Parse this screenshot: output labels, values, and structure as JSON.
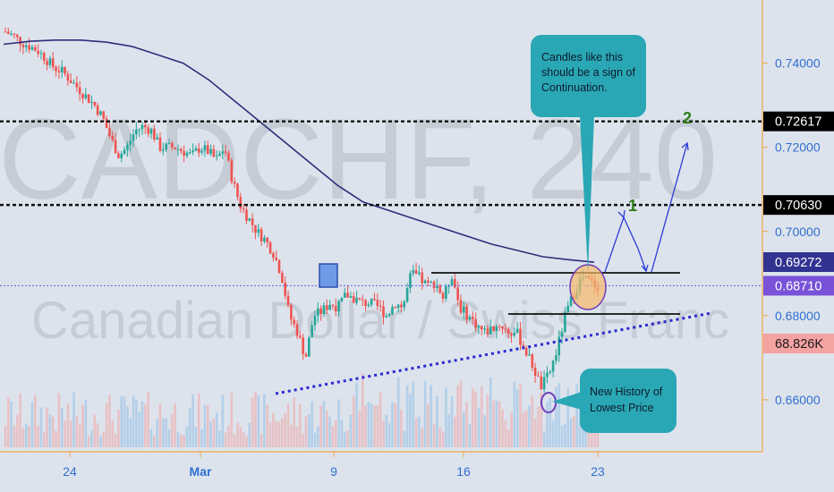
{
  "chart_data": {
    "type": "candlestick",
    "symbol_watermark": "CADCHF, 240",
    "name_watermark": "Canadian Dollar / Swiss Franc",
    "x_labels": [
      "24",
      "Mar",
      "9",
      "16",
      "23"
    ],
    "y_ticks": [
      "0.74000",
      "0.72000",
      "0.70000",
      "0.68000",
      "0.66000"
    ],
    "y_tick_values": [
      0.74,
      0.72,
      0.7,
      0.68,
      0.66
    ],
    "ylim": [
      0.6487,
      0.7529
    ],
    "levels": [
      {
        "label": "0.72617",
        "value": 0.72617,
        "style": "black-dotted"
      },
      {
        "label": "0.70630",
        "value": 0.7063,
        "style": "black-dotted"
      },
      {
        "label": "0.69272",
        "value": 0.69272,
        "style": "ma"
      },
      {
        "label": "0.68710",
        "value": 0.6871,
        "style": "last-price"
      },
      {
        "label": "68.826K",
        "value": null,
        "style": "volume"
      }
    ],
    "targets": [
      "1",
      "2"
    ],
    "annotations": [
      {
        "id": "continuation",
        "text": [
          "Candles like this",
          "should be a sign of",
          "Continuation."
        ]
      },
      {
        "id": "lowest",
        "text": [
          "New History of",
          "Lowest Price"
        ]
      }
    ],
    "price_path": [
      0.7475,
      0.7465,
      0.745,
      0.744,
      0.743,
      0.741,
      0.739,
      0.738,
      0.736,
      0.734,
      0.732,
      0.73,
      0.727,
      0.722,
      0.718,
      0.72,
      0.724,
      0.725,
      0.724,
      0.72,
      0.72,
      0.72,
      0.719,
      0.718,
      0.72,
      0.719,
      0.717,
      0.72,
      0.712,
      0.706,
      0.703,
      0.7,
      0.698,
      0.695,
      0.69,
      0.68,
      0.676,
      0.67,
      0.68,
      0.681,
      0.683,
      0.682,
      0.685,
      0.684,
      0.683,
      0.683,
      0.682,
      0.68,
      0.683,
      0.682,
      0.69,
      0.689,
      0.687,
      0.688,
      0.684,
      0.69,
      0.682,
      0.68,
      0.678,
      0.676,
      0.677,
      0.678,
      0.676,
      0.676,
      0.672,
      0.668,
      0.663,
      0.666,
      0.672,
      0.68,
      0.685,
      0.689,
      0.688,
      0.687
    ],
    "ma_path": [
      0.7445,
      0.7452,
      0.7455,
      0.7455,
      0.745,
      0.744,
      0.742,
      0.74,
      0.736,
      0.731,
      0.726,
      0.721,
      0.716,
      0.711,
      0.707,
      0.705,
      0.703,
      0.701,
      0.699,
      0.697,
      0.6955,
      0.694,
      0.6933,
      0.6927
    ]
  },
  "colors": {
    "background": "#dde3ec",
    "up": "#26a69a",
    "down": "#ef5350",
    "ma": "#2b2f7a",
    "trend": "#2a2ad0",
    "projection": "#2a3bd6",
    "callout": "#2aa7b5",
    "highlight": "#f6b86a",
    "level_tag": "#000000",
    "ma_tag": "#30338f",
    "last_tag": "#7a52d8",
    "vol_tag": "#f4a2a2",
    "axis_text": "#2f6fd1",
    "target_text": "#2f7d16"
  }
}
